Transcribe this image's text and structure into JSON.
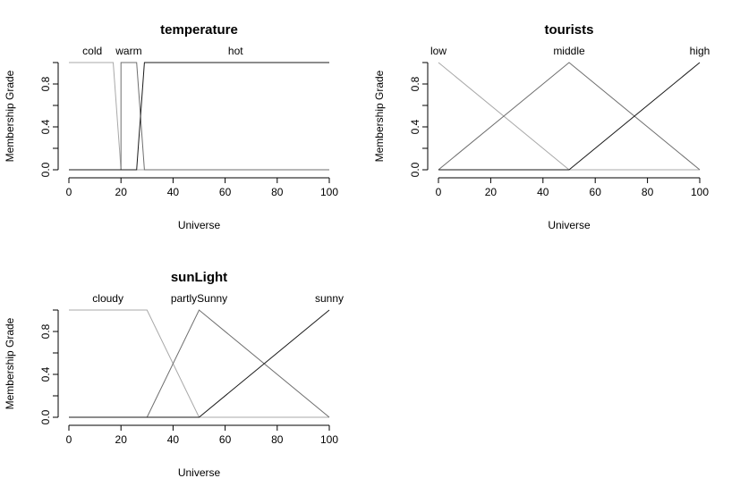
{
  "chart_data": [
    {
      "type": "line",
      "title": "temperature",
      "xlabel": "Universe",
      "ylabel": "Membership Grade",
      "xlim": [
        0,
        100
      ],
      "ylim": [
        0,
        1
      ],
      "x_ticks": [
        "0",
        "20",
        "40",
        "60",
        "80",
        "100"
      ],
      "y_ticks": [
        "0.0",
        "0.4",
        "0.8"
      ],
      "sets": [
        {
          "name": "cold",
          "label_x": 9,
          "color": "#a8a8a8",
          "points": [
            [
              0,
              1
            ],
            [
              17,
              1
            ],
            [
              20,
              0
            ],
            [
              100,
              0
            ]
          ]
        },
        {
          "name": "warm",
          "label_x": 23,
          "color": "#6e6e6e",
          "points": [
            [
              0,
              0
            ],
            [
              20,
              0
            ],
            [
              20,
              1
            ],
            [
              26,
              1
            ],
            [
              29,
              0
            ],
            [
              100,
              0
            ]
          ]
        },
        {
          "name": "hot",
          "label_x": 64,
          "color": "#1a1a1a",
          "points": [
            [
              0,
              0
            ],
            [
              26,
              0
            ],
            [
              29,
              1
            ],
            [
              100,
              1
            ]
          ]
        }
      ]
    },
    {
      "type": "line",
      "title": "tourists",
      "xlabel": "Universe",
      "ylabel": "Membership Grade",
      "xlim": [
        0,
        100
      ],
      "ylim": [
        0,
        1
      ],
      "x_ticks": [
        "0",
        "20",
        "40",
        "60",
        "80",
        "100"
      ],
      "y_ticks": [
        "0.0",
        "0.4",
        "0.8"
      ],
      "sets": [
        {
          "name": "low",
          "label_x": 0,
          "color": "#a8a8a8",
          "points": [
            [
              0,
              1
            ],
            [
              50,
              0
            ],
            [
              100,
              0
            ]
          ]
        },
        {
          "name": "middle",
          "label_x": 50,
          "color": "#6e6e6e",
          "points": [
            [
              0,
              0
            ],
            [
              50,
              1
            ],
            [
              100,
              0
            ]
          ]
        },
        {
          "name": "high",
          "label_x": 100,
          "color": "#1a1a1a",
          "points": [
            [
              0,
              0
            ],
            [
              50,
              0
            ],
            [
              100,
              1
            ]
          ]
        }
      ]
    },
    {
      "type": "line",
      "title": "sunLight",
      "xlabel": "Universe",
      "ylabel": "Membership Grade",
      "xlim": [
        0,
        100
      ],
      "ylim": [
        0,
        1
      ],
      "x_ticks": [
        "0",
        "20",
        "40",
        "60",
        "80",
        "100"
      ],
      "y_ticks": [
        "0.0",
        "0.4",
        "0.8"
      ],
      "sets": [
        {
          "name": "cloudy",
          "label_x": 15,
          "color": "#a8a8a8",
          "points": [
            [
              0,
              1
            ],
            [
              30,
              1
            ],
            [
              50,
              0
            ],
            [
              100,
              0
            ]
          ]
        },
        {
          "name": "partlySunny",
          "label_x": 50,
          "color": "#6e6e6e",
          "points": [
            [
              0,
              0
            ],
            [
              30,
              0
            ],
            [
              50,
              1
            ],
            [
              100,
              0
            ]
          ]
        },
        {
          "name": "sunny",
          "label_x": 100,
          "color": "#1a1a1a",
          "points": [
            [
              0,
              0
            ],
            [
              50,
              0
            ],
            [
              100,
              1
            ]
          ]
        }
      ]
    }
  ]
}
